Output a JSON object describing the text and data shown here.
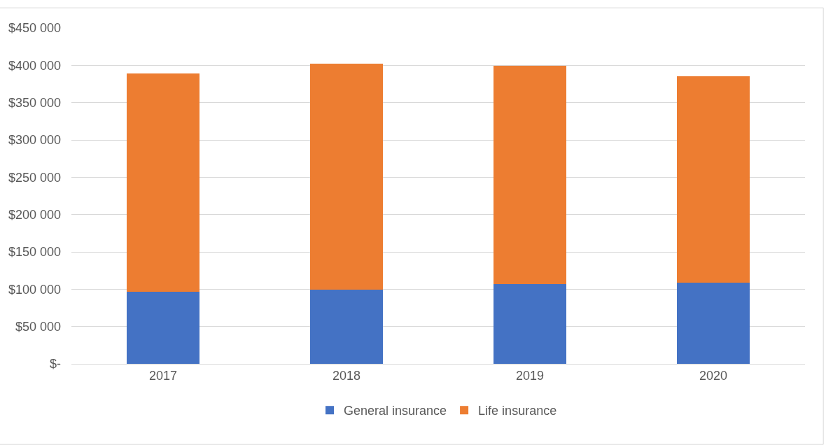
{
  "chart_data": {
    "type": "bar",
    "stacked": true,
    "categories": [
      "2017",
      "2018",
      "2019",
      "2020"
    ],
    "series": [
      {
        "name": "General insurance",
        "color": "#4472c4",
        "values": [
          97000,
          99000,
          107000,
          109000
        ]
      },
      {
        "name": "Life insurance",
        "color": "#ed7d31",
        "values": [
          292000,
          303000,
          292000,
          276000
        ]
      }
    ],
    "ylim": [
      0,
      450000
    ],
    "yticks": [
      {
        "value": 0,
        "label": "$-"
      },
      {
        "value": 50000,
        "label": "$50 000"
      },
      {
        "value": 100000,
        "label": "$100 000"
      },
      {
        "value": 150000,
        "label": "$150 000"
      },
      {
        "value": 200000,
        "label": "$200 000"
      },
      {
        "value": 250000,
        "label": "$250 000"
      },
      {
        "value": 300000,
        "label": "$300 000"
      },
      {
        "value": 350000,
        "label": "$350 000"
      },
      {
        "value": 400000,
        "label": "$400 000"
      },
      {
        "value": 450000,
        "label": "$450 000"
      }
    ],
    "grid": "y",
    "legend": "bottom"
  }
}
